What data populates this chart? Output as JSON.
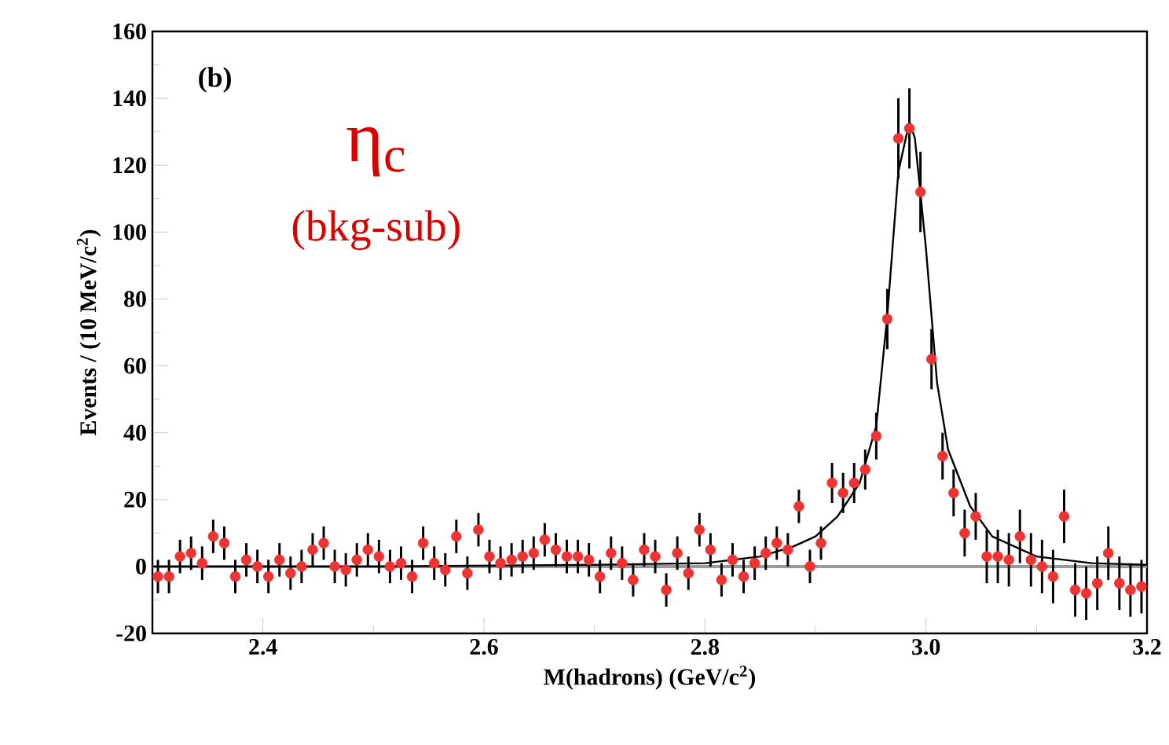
{
  "chart_data": {
    "type": "scatter",
    "xlabel": "M(hadrons)  (GeV/c$^{2}$)",
    "ylabel": "Events / (10 MeV/c$^{2}$)",
    "annotations": [
      "(b)",
      "η$_{c}$",
      "(bkg-sub)"
    ],
    "xlim": [
      2.3,
      3.2
    ],
    "ylim": [
      -20,
      160
    ],
    "xticks": [
      2.4,
      2.6,
      2.8,
      {
        "value": 3.0,
        "label": "3.0"
      },
      3.2
    ],
    "yticks": [
      -20,
      0,
      20,
      40,
      60,
      80,
      100,
      120,
      140,
      160
    ],
    "ref_lines": [
      {
        "axis": "y",
        "value": 0,
        "color": "#999999"
      }
    ],
    "series": [
      {
        "marker": "circle",
        "color": "#ee3333",
        "x": [
          2.305,
          2.315,
          2.325,
          2.335,
          2.345,
          2.355,
          2.365,
          2.375,
          2.385,
          2.395,
          2.405,
          2.415,
          2.425,
          2.435,
          2.445,
          2.455,
          2.465,
          2.475,
          2.485,
          2.495,
          2.505,
          2.515,
          2.525,
          2.535,
          2.545,
          2.555,
          2.565,
          2.575,
          2.585,
          2.595,
          2.605,
          2.615,
          2.625,
          2.635,
          2.645,
          2.655,
          2.665,
          2.675,
          2.685,
          2.695,
          2.705,
          2.715,
          2.725,
          2.735,
          2.745,
          2.755,
          2.765,
          2.775,
          2.785,
          2.795,
          2.805,
          2.815,
          2.825,
          2.835,
          2.845,
          2.855,
          2.865,
          2.875,
          2.885,
          2.895,
          2.905,
          2.915,
          2.925,
          2.935,
          2.945,
          2.955,
          2.965,
          2.975,
          2.985,
          2.995,
          3.005,
          3.015,
          3.025,
          3.035,
          3.045,
          3.055,
          3.065,
          3.075,
          3.085,
          3.095,
          3.105,
          3.115,
          3.125,
          3.135,
          3.145,
          3.155,
          3.165,
          3.175,
          3.185,
          3.195
        ],
        "values": [
          -3,
          -3,
          3,
          4,
          1,
          9,
          7,
          -3,
          2,
          0,
          -3,
          2,
          -2,
          0,
          5,
          7,
          0,
          -1,
          2,
          5,
          3,
          0,
          1,
          -3,
          7,
          1,
          -1,
          9,
          -2,
          11,
          3,
          1,
          2,
          3,
          4,
          8,
          5,
          3,
          3,
          2,
          -3,
          4,
          1,
          -4,
          5,
          3,
          -7,
          4,
          -2,
          11,
          5,
          -4,
          2,
          -3,
          1,
          4,
          7,
          5,
          18,
          0,
          7,
          25,
          22,
          25,
          29,
          39,
          74,
          128,
          131,
          112,
          62,
          33,
          22,
          10,
          15,
          3,
          3,
          2,
          9,
          2,
          0,
          -3,
          15,
          -7,
          -8,
          -5,
          4,
          -5,
          -7,
          -6
        ],
        "errors": [
          5,
          5,
          5,
          5,
          5,
          5,
          5,
          5,
          5,
          5,
          5,
          5,
          5,
          5,
          5,
          5,
          5,
          5,
          5,
          5,
          5,
          5,
          5,
          5,
          5,
          5,
          5,
          5,
          5,
          5,
          5,
          5,
          5,
          5,
          5,
          5,
          5,
          5,
          5,
          5,
          5,
          5,
          5,
          5,
          5,
          5,
          5,
          5,
          5,
          5,
          5,
          5,
          5,
          5,
          5,
          5,
          5,
          5,
          5,
          5,
          5,
          6,
          6,
          6,
          6,
          7,
          9,
          12,
          12,
          12,
          9,
          7,
          7,
          7,
          7,
          8,
          8,
          8,
          8,
          8,
          8,
          8,
          8,
          8,
          8,
          8,
          8,
          8,
          8,
          8
        ]
      },
      {
        "type": "line",
        "marker": "none",
        "color": "#000000",
        "x": [
          2.3,
          2.5,
          2.7,
          2.8,
          2.85,
          2.88,
          2.9,
          2.92,
          2.94,
          2.955,
          2.965,
          2.975,
          2.985,
          2.99,
          3.0,
          3.01,
          3.02,
          3.04,
          3.06,
          3.1,
          3.15,
          3.2
        ],
        "values": [
          0,
          0,
          0.5,
          1,
          3,
          6,
          9,
          15,
          25,
          42,
          75,
          118,
          133,
          128,
          95,
          55,
          35,
          18,
          9,
          3,
          1,
          0.5
        ]
      }
    ]
  }
}
